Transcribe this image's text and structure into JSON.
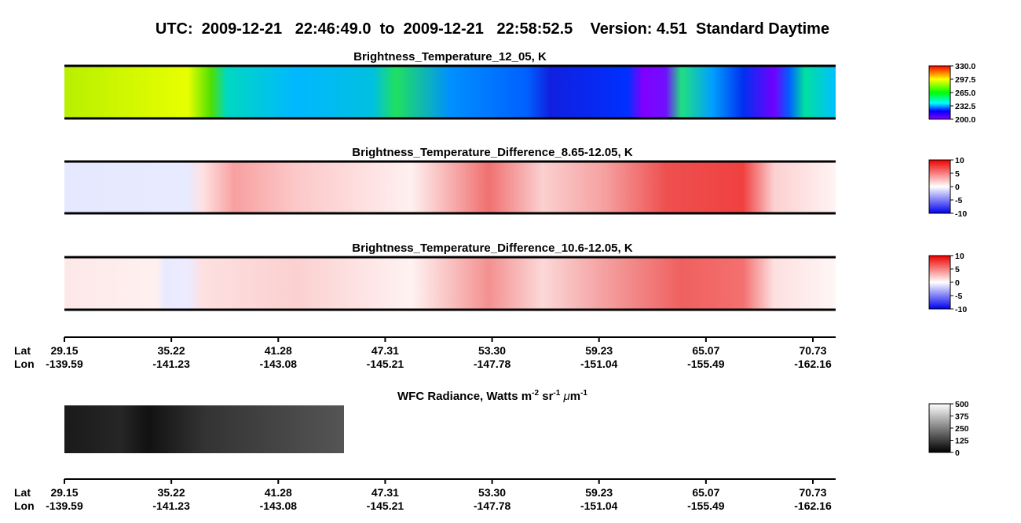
{
  "title": "UTC:  2009-12-21   22:46:49.0  to  2009-12-21   22:58:52.5    Version: 4.51  Standard Daytime",
  "panels": [
    {
      "title": "Brightness_Temperature_12_05, K",
      "colorbar": [
        "330.0",
        "297.5",
        "265.0",
        "232.5",
        "200.0"
      ]
    },
    {
      "title": "Brightness_Temperature_Difference_8.65-12.05, K",
      "colorbar": [
        "10",
        "5",
        "0",
        "-5",
        "-10"
      ]
    },
    {
      "title": "Brightness_Temperature_Difference_10.6-12.05, K",
      "colorbar": [
        "10",
        "5",
        "0",
        "-5",
        "-10"
      ]
    }
  ],
  "wfc": {
    "title": [
      "WFC Radiance, Watts m",
      "-2",
      " sr",
      "-1",
      " ",
      "μ",
      "m",
      "-1"
    ],
    "colorbar": [
      "500",
      "375",
      "250",
      "125",
      "0"
    ]
  },
  "axes": [
    {
      "lat_label": "Lat",
      "lon_label": "Lon",
      "lat": [
        "29.15",
        "35.22",
        "41.28",
        "47.31",
        "53.30",
        "59.23",
        "65.07",
        "70.73"
      ],
      "lon": [
        "-139.59",
        "-141.23",
        "-143.08",
        "-145.21",
        "-147.78",
        "-151.04",
        "-155.49",
        "-162.16"
      ]
    },
    {
      "lat_label": "Lat",
      "lon_label": "Lon",
      "lat": [
        "29.15",
        "35.22",
        "41.28",
        "47.31",
        "53.30",
        "59.23",
        "65.07",
        "70.73"
      ],
      "lon": [
        "-139.59",
        "-141.23",
        "-143.08",
        "-145.21",
        "-147.78",
        "-151.04",
        "-155.49",
        "-162.16"
      ]
    }
  ]
}
